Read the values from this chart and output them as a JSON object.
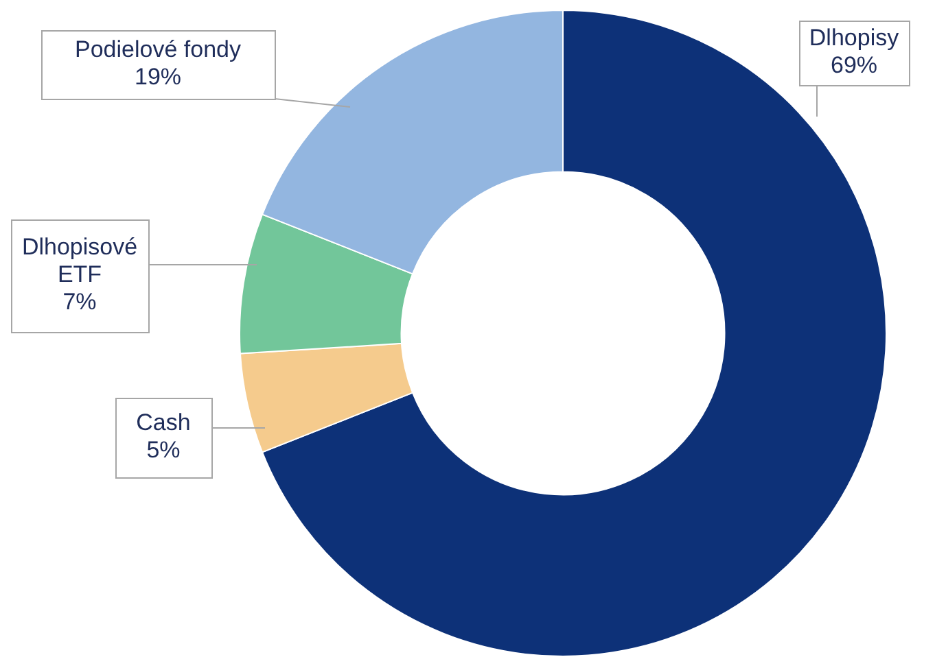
{
  "chart_data": {
    "type": "donut",
    "categories": [
      "Dlhopisy",
      "Cash",
      "Dlhopisové ETF",
      "Podielové fondy"
    ],
    "values": [
      69,
      5,
      7,
      19
    ],
    "value_labels": [
      "69%",
      "5%",
      "7%",
      "19%"
    ],
    "colors": [
      "#0d3178",
      "#f5cb8d",
      "#72c69a",
      "#93b6e0"
    ],
    "legend": false
  }
}
